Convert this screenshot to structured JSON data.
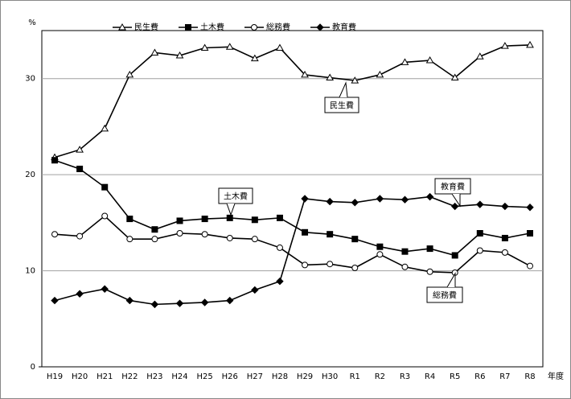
{
  "chart_data": {
    "type": "line",
    "y_label": "%",
    "x_label": "年度",
    "categories": [
      "H19",
      "H20",
      "H21",
      "H22",
      "H23",
      "H24",
      "H25",
      "H26",
      "H27",
      "H28",
      "H29",
      "H30",
      "R1",
      "R2",
      "R3",
      "R4",
      "R5",
      "R6",
      "R7",
      "R8"
    ],
    "series": [
      {
        "name": "民生費",
        "color": "#000000",
        "marker": "triangle",
        "values": [
          21.8,
          22.6,
          24.8,
          30.4,
          32.7,
          32.4,
          33.2,
          33.3,
          32.1,
          33.2,
          30.4,
          30.1,
          29.8,
          30.4,
          31.7,
          31.9,
          30.1,
          32.3,
          33.4,
          33.5
        ]
      },
      {
        "name": "土木費",
        "color": "#000000",
        "marker": "square",
        "values": [
          21.5,
          20.6,
          18.7,
          15.4,
          14.3,
          15.2,
          15.4,
          15.5,
          15.3,
          15.5,
          14.0,
          13.8,
          13.3,
          12.5,
          12.0,
          12.3,
          11.6,
          13.9,
          13.4,
          13.9
        ]
      },
      {
        "name": "総務費",
        "color": "#000000",
        "marker": "circle",
        "values": [
          13.8,
          13.6,
          15.7,
          13.3,
          13.3,
          13.9,
          13.8,
          13.4,
          13.3,
          12.4,
          10.6,
          10.7,
          10.3,
          11.7,
          10.4,
          9.9,
          9.8,
          12.1,
          11.9,
          10.5
        ]
      },
      {
        "name": "教育費",
        "color": "#000000",
        "marker": "diamond",
        "values": [
          6.9,
          7.6,
          8.1,
          6.9,
          6.5,
          6.6,
          6.7,
          6.9,
          8.0,
          8.9,
          17.5,
          17.2,
          17.1,
          17.5,
          17.4,
          17.7,
          16.7,
          16.9,
          16.7,
          16.6
        ]
      }
    ],
    "annotations": [
      "民生費",
      "土木費",
      "教育費",
      "総務費"
    ],
    "ylim": [
      0,
      35
    ],
    "yticks": [
      0,
      10,
      20,
      30
    ],
    "grid": true,
    "legend": "top"
  }
}
